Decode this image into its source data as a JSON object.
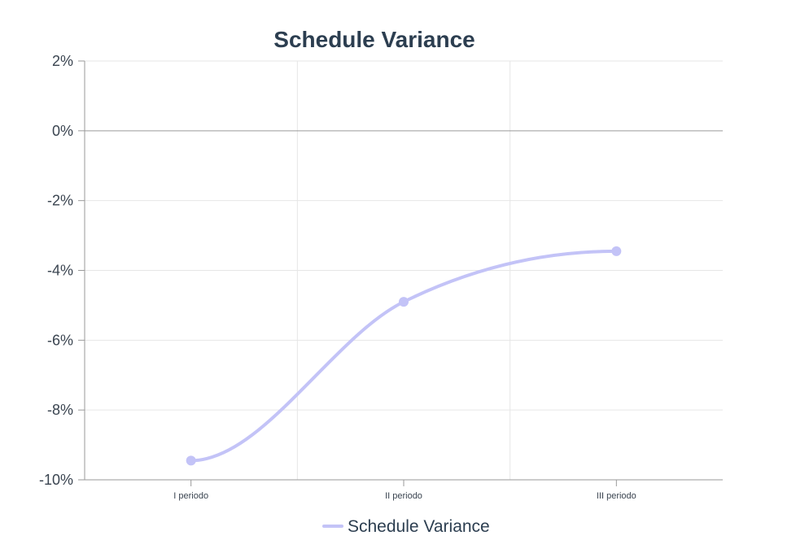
{
  "chart_data": {
    "type": "line",
    "title": "Schedule Variance",
    "categories": [
      "I periodo",
      "II periodo",
      "III periodo"
    ],
    "series": [
      {
        "name": "Schedule Variance",
        "values": [
          -9.45,
          -4.9,
          -3.45
        ]
      }
    ],
    "ylim": [
      -10,
      2
    ],
    "yticks": [
      2,
      0,
      -2,
      -4,
      -6,
      -8,
      -10
    ],
    "ytick_labels": [
      "2%",
      "0%",
      "-2%",
      "-4%",
      "-6%",
      "-8%",
      "-10%"
    ],
    "xlabel": "",
    "ylabel": "",
    "grid": true,
    "legend": "bottom",
    "colors": {
      "series": "#c3c3f7",
      "title": "#2c3e50"
    }
  }
}
